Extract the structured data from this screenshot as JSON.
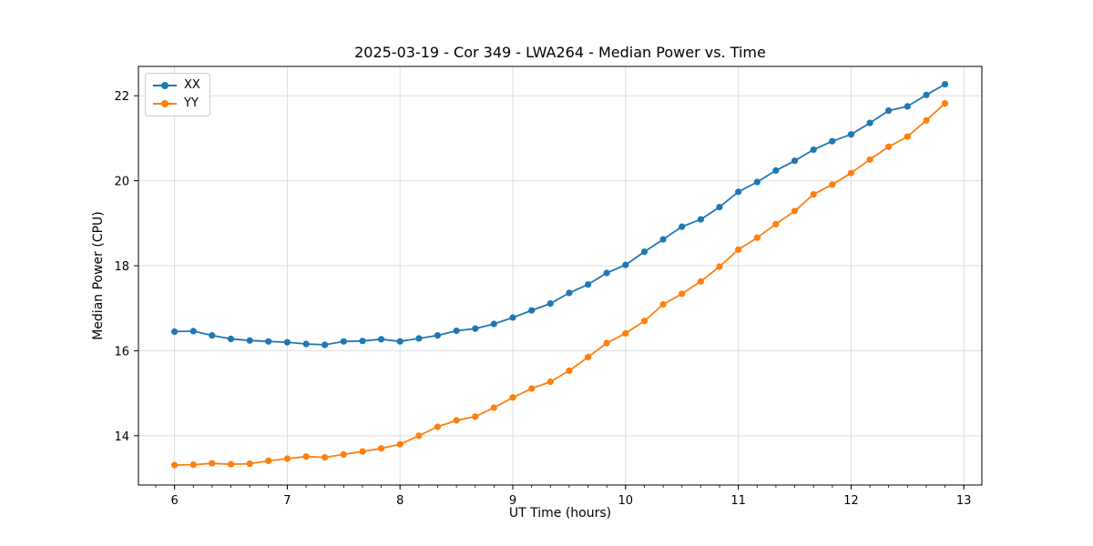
{
  "figure": {
    "title": "2025-03-19 - Cor 349 - LWA264 - Median Power vs. Time"
  },
  "chart_data": {
    "type": "line",
    "title": "2025-03-19 - Cor 349 - LWA264 - Median Power vs. Time",
    "xlabel": "UT Time (hours)",
    "ylabel": "Median Power (CPU)",
    "xlim": [
      5.68,
      13.16
    ],
    "ylim": [
      12.84,
      22.69
    ],
    "xticks": [
      6,
      7,
      8,
      9,
      10,
      11,
      12,
      13
    ],
    "yticks": [
      14,
      16,
      18,
      20,
      22
    ],
    "x_minor_tick_step": 0.16667,
    "grid": true,
    "grid_color": "#dddddd",
    "legend_position": "upper-left",
    "marker": "circle",
    "x": [
      6.0,
      6.167,
      6.333,
      6.5,
      6.667,
      6.833,
      7.0,
      7.167,
      7.333,
      7.5,
      7.667,
      7.833,
      8.0,
      8.167,
      8.333,
      8.5,
      8.667,
      8.833,
      9.0,
      9.167,
      9.333,
      9.5,
      9.667,
      9.833,
      10.0,
      10.167,
      10.333,
      10.5,
      10.667,
      10.833,
      11.0,
      11.167,
      11.333,
      11.5,
      11.667,
      11.833,
      12.0,
      12.167,
      12.333,
      12.5,
      12.667,
      12.833
    ],
    "series": [
      {
        "name": "XX",
        "color": "#1f77b4",
        "values": [
          16.45,
          16.46,
          16.36,
          16.28,
          16.24,
          16.22,
          16.2,
          16.16,
          16.14,
          16.22,
          16.23,
          16.27,
          16.22,
          16.29,
          16.36,
          16.47,
          16.52,
          16.63,
          16.78,
          16.95,
          17.11,
          17.36,
          17.56,
          17.83,
          18.02,
          18.33,
          18.62,
          18.92,
          19.09,
          19.38,
          19.74,
          19.97,
          20.24,
          20.47,
          20.73,
          20.93,
          21.09,
          21.36,
          21.65,
          21.75,
          22.02,
          22.27
        ]
      },
      {
        "name": "YY",
        "color": "#ff7f0e",
        "values": [
          13.31,
          13.32,
          13.35,
          13.33,
          13.34,
          13.41,
          13.46,
          13.51,
          13.49,
          13.56,
          13.63,
          13.7,
          13.8,
          14.0,
          14.21,
          14.36,
          14.45,
          14.66,
          14.9,
          15.11,
          15.27,
          15.53,
          15.85,
          16.18,
          16.41,
          16.7,
          17.09,
          17.34,
          17.63,
          17.98,
          18.38,
          18.66,
          18.98,
          19.29,
          19.68,
          19.91,
          20.18,
          20.5,
          20.8,
          21.04,
          21.42,
          21.82
        ]
      }
    ]
  },
  "style": {
    "spine_color": "#000000",
    "tick_color": "#000000",
    "text_color": "#000000",
    "background": "#ffffff"
  }
}
